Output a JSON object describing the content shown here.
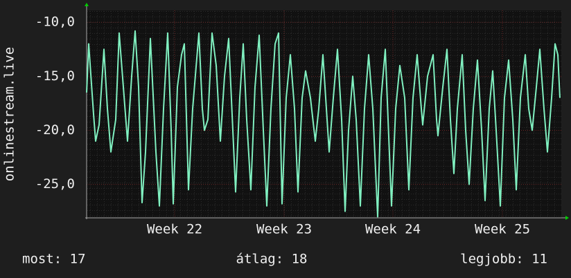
{
  "chart_data": {
    "type": "line",
    "ylabel": "onlinestream.live",
    "x": [
      0,
      3,
      10,
      13,
      18,
      25,
      30,
      35,
      42,
      47,
      53,
      59,
      65,
      70,
      75,
      80,
      85,
      92,
      100,
      105,
      111,
      117,
      122,
      125,
      131,
      137,
      141,
      147,
      153,
      162,
      167,
      170,
      175,
      181,
      187,
      193,
      199,
      205,
      211,
      215,
      221,
      226,
      231,
      237,
      243,
      249,
      255,
      260,
      266,
      272,
      277,
      282,
      288,
      294,
      300,
      305,
      311,
      316,
      323,
      330,
      335,
      341,
      345,
      350,
      356,
      362,
      368,
      373,
      378,
      384,
      389,
      395,
      401,
      407,
      413,
      420,
      425,
      431,
      435,
      440,
      446,
      452,
      459,
      465,
      471,
      477,
      483,
      485,
      492,
      500,
      505,
      507,
      514,
      520,
      525,
      530,
      535,
      542,
      547,
      552,
      558,
      564,
      570,
      575,
      581,
      586,
      591,
      597,
      603,
      609,
      615,
      620,
      626,
      633,
      638,
      643,
      649,
      654,
      660,
      665,
      671,
      676,
      680,
      683
    ],
    "values": [
      -16.5,
      -12,
      -18.5,
      -21,
      -19.5,
      -12.5,
      -18,
      -22,
      -19,
      -11,
      -16,
      -21,
      -15,
      -10.8,
      -16,
      -26.7,
      -22,
      -11.5,
      -22,
      -27,
      -18,
      -11,
      -20,
      -26.8,
      -16,
      -13,
      -12,
      -25.5,
      -18,
      -11,
      -18,
      -20,
      -19,
      -11,
      -14,
      -21,
      -15,
      -11.5,
      -20,
      -25.7,
      -17,
      -12,
      -19,
      -25.5,
      -16,
      -11.2,
      -20,
      -27,
      -18,
      -12,
      -11,
      -26.8,
      -17,
      -13,
      -18,
      -25.7,
      -17,
      -14.5,
      -17,
      -21,
      -18,
      -13,
      -17,
      -22,
      -17,
      -12.5,
      -19,
      -27.5,
      -20,
      -15,
      -19,
      -27,
      -18,
      -13,
      -18,
      -28,
      -17,
      -12.5,
      -19,
      -27,
      -18,
      -14,
      -17,
      -25.5,
      -17,
      -13,
      -18,
      -19.5,
      -15,
      -13,
      -19,
      -20.5,
      -16,
      -12.5,
      -19,
      -24,
      -18,
      -13,
      -20,
      -25,
      -18,
      -13.5,
      -20,
      -26.5,
      -18,
      -14.5,
      -20,
      -27,
      -17,
      -13.5,
      -19,
      -25.5,
      -17,
      -13,
      -18,
      -20,
      -16,
      -12.5,
      -18,
      -22,
      -17,
      -12,
      -13,
      -17
    ],
    "color": "#80f0c0",
    "xlim": [
      0,
      685
    ],
    "xticks": [
      {
        "value": 127,
        "label": "Week 22"
      },
      {
        "value": 285,
        "label": "Week 23"
      },
      {
        "value": 442,
        "label": "Week 24"
      },
      {
        "value": 600,
        "label": "Week 25"
      }
    ],
    "ylim": [
      -28.1,
      -8.9
    ],
    "yticks": [
      {
        "value": -10,
        "label": "-10,0"
      },
      {
        "value": -15,
        "label": "-15,0"
      },
      {
        "value": -20,
        "label": "-20,0"
      },
      {
        "value": -25,
        "label": "-25,0"
      }
    ],
    "grid": true,
    "footer": [
      "most: 17",
      "átlag: 18",
      "legjobb: 11"
    ]
  }
}
